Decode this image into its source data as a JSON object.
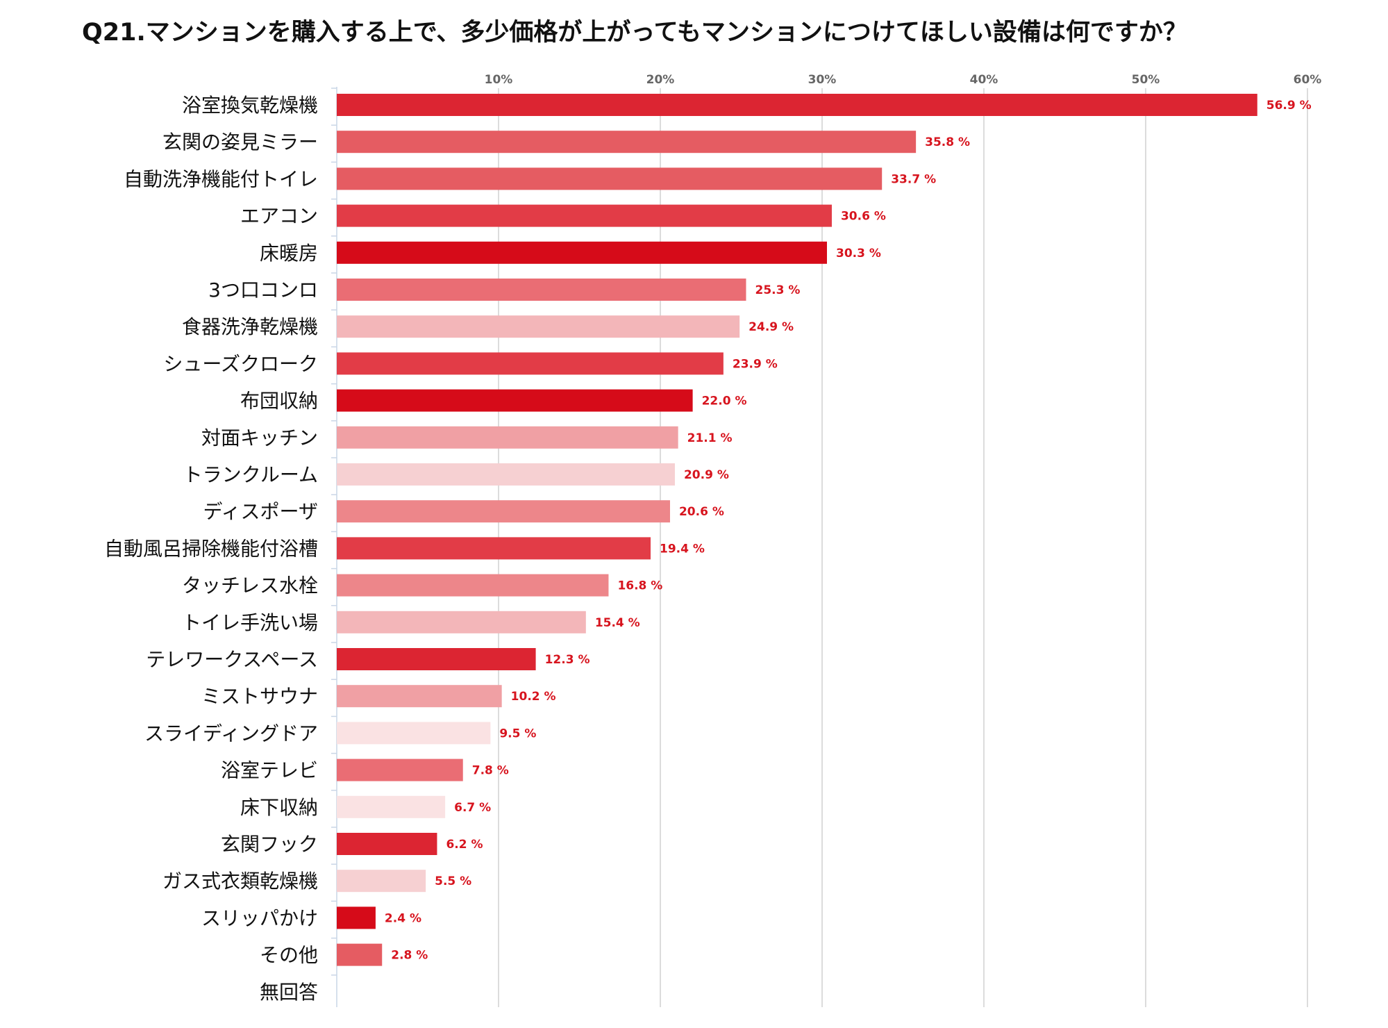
{
  "title": "Q21.マンションを購入する上で、多少価格が上がってもマンションにつけてほしい設備は何ですか？",
  "chart_data": {
    "type": "bar",
    "orientation": "horizontal",
    "title": "Q21.マンションを購入する上で、多少価格が上がってもマンションにつけてほしい設備は何ですか？",
    "xlabel": "",
    "ylabel": "",
    "xlim": [
      0,
      60
    ],
    "grid": true,
    "ticks": [
      "10%",
      "20%",
      "30%",
      "40%",
      "50%",
      "60%"
    ],
    "tick_values": [
      10,
      20,
      30,
      40,
      50,
      60
    ],
    "value_suffix": " %",
    "categories": [
      "浴室換気乾燥機",
      "玄関の姿見ミラー",
      "自動洗浄機能付トイレ",
      "エアコン",
      "床暖房",
      "3つ口コンロ",
      "食器洗浄乾燥機",
      "シューズクローク",
      "布団収納",
      "対面キッチン",
      "トランクルーム",
      "ディスポーザ",
      "自動風呂掃除機能付浴槽",
      "タッチレス水栓",
      "トイレ手洗い場",
      "テレワークスペース",
      "ミストサウナ",
      "スライディングドア",
      "浴室テレビ",
      "床下収納",
      "玄関フック",
      "ガス式衣類乾燥機",
      "スリッパかけ",
      "その他",
      "無回答"
    ],
    "values": [
      56.9,
      35.8,
      33.7,
      30.6,
      30.3,
      25.3,
      24.9,
      23.9,
      22.0,
      21.1,
      20.9,
      20.6,
      19.4,
      16.8,
      15.4,
      12.3,
      10.2,
      9.5,
      7.8,
      6.7,
      6.2,
      5.5,
      2.4,
      2.8,
      null
    ],
    "labels": [
      "56.9 %",
      "35.8 %",
      "33.7 %",
      "30.6 %",
      "30.3 %",
      "25.3 %",
      "24.9 %",
      "23.9 %",
      "22.0 %",
      "21.1 %",
      "20.9 %",
      "20.6 %",
      "19.4 %",
      "16.8 %",
      "15.4 %",
      "12.3 %",
      "10.2 %",
      "9.5 %",
      "7.8 %",
      "6.7 %",
      "6.2 %",
      "5.5 %",
      "2.4 %",
      "2.8 %",
      ""
    ],
    "colors": [
      "#dc2532",
      "#e55c62",
      "#e55c62",
      "#e23c47",
      "#d60b19",
      "#ea6d74",
      "#f3b6b9",
      "#e23c47",
      "#d60b19",
      "#f0a0a4",
      "#f6d0d2",
      "#ed868a",
      "#e23c47",
      "#ed868a",
      "#f3b6b9",
      "#dc2532",
      "#f0a0a4",
      "#fae2e3",
      "#ea6d74",
      "#fae2e3",
      "#dc2532",
      "#f6d0d2",
      "#d60b19",
      "#e55c62",
      ""
    ]
  }
}
